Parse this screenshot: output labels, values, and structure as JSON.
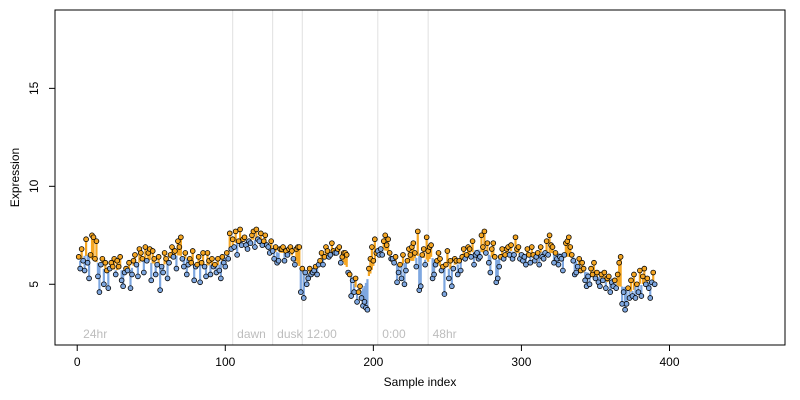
{
  "chart_data": {
    "type": "scatter",
    "xlabel": "Sample index",
    "ylabel": "Expression",
    "xlim": [
      -15,
      478
    ],
    "ylim": [
      1.9,
      19.0
    ],
    "x_ticks": [
      0,
      100,
      200,
      300,
      400
    ],
    "y_ticks": [
      5,
      10,
      15
    ],
    "grid": false,
    "colors": {
      "above_baseline": "#f5a623",
      "below_baseline": "#7ea7e0",
      "point_fill_high": "#f5a623",
      "point_fill_low": "#7ea7e0",
      "point_stroke": "#000000",
      "separator": "#e0e0e0",
      "annotation": "#bdbdbd"
    },
    "annotations": [
      {
        "label": "24hr",
        "x": 2
      },
      {
        "label": "dawn",
        "x": 106
      },
      {
        "label": "dusk",
        "x": 133
      },
      {
        "label": "12:00",
        "x": 153
      },
      {
        "label": "0:00",
        "x": 204
      },
      {
        "label": "48hr",
        "x": 238
      }
    ],
    "separators": [
      105,
      132,
      152,
      203,
      237
    ],
    "series": [
      {
        "x_start": 1,
        "values": [
          6.4,
          5.8,
          6.8,
          6.2,
          5.7,
          7.3,
          6.1,
          5.3,
          6.5,
          7.5,
          7.4,
          6.3,
          7.2,
          5.4,
          4.6,
          6.0,
          6.3,
          5.0,
          6.1,
          5.7,
          4.8,
          5.8,
          6.1,
          5.9,
          6.3,
          5.5,
          6.2,
          5.9,
          6.4,
          5.2,
          4.9,
          5.6,
          5.8,
          5.7,
          6.1,
          4.8,
          5.5,
          6.2,
          6.5,
          6.0,
          5.4,
          6.8,
          6.6,
          6.3,
          5.6,
          6.9,
          6.2,
          6.6,
          6.8,
          5.2,
          6.7,
          6.3,
          5.5,
          6.0,
          6.4,
          4.7,
          5.9,
          5.6,
          6.6,
          6.3,
          5.3,
          6.1,
          6.5,
          6.9,
          6.4,
          6.7,
          5.8,
          7.2,
          6.9,
          7.4,
          6.3,
          5.9,
          6.6,
          5.5,
          6.0,
          6.3,
          6.1,
          6.7,
          5.2,
          5.9,
          6.0,
          6.4,
          5.1,
          6.1,
          6.6,
          5.9,
          5.4,
          6.6,
          6.2,
          5.5,
          6.3,
          5.9,
          6.0,
          5.6,
          6.3,
          5.7,
          5.3,
          6.4,
          6.1,
          5.9,
          6.6,
          6.3,
          7.6,
          6.8,
          7.3,
          6.9,
          7.7,
          6.5,
          7.2,
          7.8,
          7.0,
          7.3,
          7.4,
          7.0,
          6.8,
          7.2,
          7.1,
          7.5,
          7.7,
          6.9,
          7.8,
          7.3,
          7.2,
          7.6,
          7.0,
          7.2,
          7.5,
          7.0,
          6.9,
          6.6,
          7.2,
          6.7,
          6.3,
          6.9,
          6.1,
          6.2,
          6.8,
          6.8,
          6.9,
          6.2,
          6.7,
          6.5,
          6.8,
          6.9,
          6.7,
          6.3,
          6.0,
          6.8,
          6.9,
          6.9,
          4.6,
          5.8,
          4.3,
          5.6,
          5.0,
          5.3,
          5.8,
          5.5,
          5.6,
          5.7,
          5.9,
          5.5,
          6.0,
          6.2,
          6.6,
          6.0,
          6.4,
          6.9,
          6.7,
          6.4,
          6.5,
          7.1,
          6.7,
          6.6,
          6.6,
          6.8,
          6.9,
          6.1,
          6.4,
          6.6,
          6.6,
          6.5,
          5.6,
          5.5,
          4.4,
          5.2,
          4.6,
          5.3,
          4.1,
          4.6,
          4.9,
          4.3,
          3.9,
          4.1,
          3.8,
          3.7,
          5.8,
          6.3,
          6.9,
          6.2,
          7.3,
          6.6,
          6.7,
          6.5,
          6.8,
          6.5,
          7.2,
          7.5,
          7.0,
          7.3,
          6.6,
          6.3,
          6.3,
          6.1,
          6.4,
          5.1,
          5.6,
          6.0,
          5.3,
          6.5,
          5.0,
          5.7,
          6.2,
          6.8,
          6.5,
          6.9,
          7.1,
          6.6,
          5.9,
          7.7,
          4.7,
          4.9,
          6.5,
          6.8,
          6.0,
          7.4,
          6.7,
          6.9,
          7.0,
          5.3,
          5.5,
          6.0,
          6.2,
          6.6,
          6.3,
          5.7,
          5.9,
          4.5,
          6.0,
          6.7,
          5.3,
          6.2,
          4.9,
          5.8,
          6.3,
          6.2,
          5.5,
          6.2,
          5.7,
          6.4,
          6.8,
          6.3,
          6.5,
          6.9,
          6.8,
          6.4,
          7.2,
          6.0,
          6.5,
          6.6,
          6.3,
          6.4,
          7.5,
          6.9,
          7.7,
          6.6,
          7.1,
          6.1,
          5.6,
          6.8,
          7.1,
          6.4,
          5.1,
          5.3,
          5.9,
          6.4,
          6.8,
          6.3,
          6.5,
          6.8,
          6.9,
          6.5,
          7.0,
          6.3,
          6.5,
          7.4,
          6.8,
          6.9,
          6.3,
          6.5,
          6.2,
          6.4,
          6.0,
          6.8,
          6.5,
          6.1,
          6.9,
          6.5,
          6.2,
          6.4,
          6.6,
          6.0,
          6.9,
          6.4,
          6.3,
          6.6,
          7.2,
          6.5,
          7.5,
          7.0,
          6.9,
          6.1,
          6.6,
          6.3,
          6.0,
          6.4,
          6.3,
          5.7,
          6.5,
          7.1,
          7.2,
          7.4,
          6.9,
          6.5,
          6.2,
          5.5,
          5.6,
          5.9,
          6.3,
          5.7,
          6.1,
          5.8,
          5.2,
          4.9,
          5.4,
          5.0,
          5.8,
          5.5,
          6.1,
          5.3,
          5.6,
          5.1,
          4.9,
          5.5,
          5.2,
          5.6,
          4.8,
          5.3,
          5.4,
          4.6,
          5.1,
          4.9,
          5.2,
          4.8,
          5.5,
          6.1,
          6.4,
          4.0,
          4.6,
          3.7,
          4.0,
          4.8,
          4.3,
          5.2,
          4.4,
          5.5,
          4.3,
          5.0,
          4.6,
          5.7,
          4.4,
          5.4,
          5.8,
          5.0,
          5.3,
          4.8,
          4.3,
          5.1,
          5.6,
          5.0
        ]
      }
    ]
  }
}
